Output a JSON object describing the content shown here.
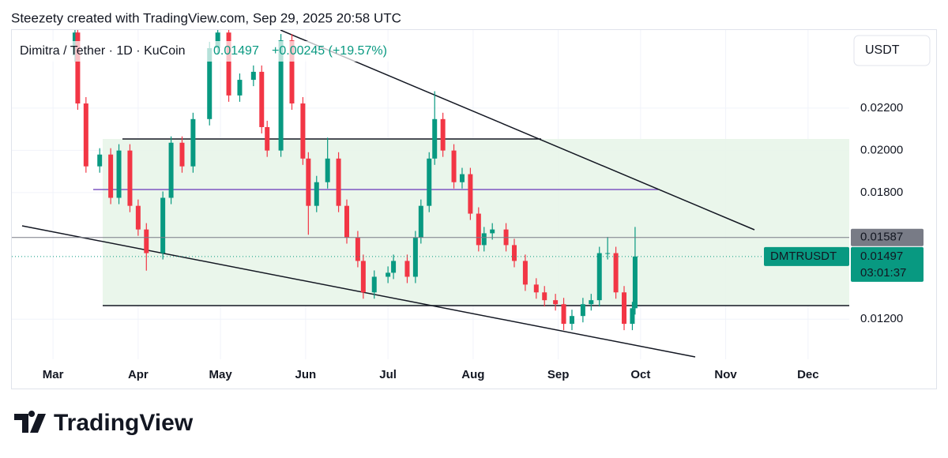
{
  "chart_data": {
    "type": "candlestick",
    "credit": "Steezety created with TradingView.com, Sep 29, 2025 20:58 UTC",
    "title": "Dimitra / Tether · 1D · KuCoin",
    "change": "+0.00245 (+19.57%)",
    "currency": "USDT",
    "symbol": "DMTRUSDT",
    "countdown": "03:01:37",
    "branding": "TradingView",
    "up_color": "#089981",
    "down_color": "#f23645",
    "xlim": [
      -15,
      290
    ],
    "xticks": [
      {
        "value": 0,
        "label": "Mar"
      },
      {
        "value": 31,
        "label": "Apr"
      },
      {
        "value": 61,
        "label": "May"
      },
      {
        "value": 92,
        "label": "Jun"
      },
      {
        "value": 122,
        "label": "Jul"
      },
      {
        "value": 153,
        "label": "Aug"
      },
      {
        "value": 184,
        "label": "Sep"
      },
      {
        "value": 214,
        "label": "Oct"
      },
      {
        "value": 245,
        "label": "Nov"
      },
      {
        "value": 275,
        "label": "Dec"
      }
    ],
    "ylim": [
      0.0101,
      0.0257
    ],
    "yticks": [
      {
        "value": 0.012,
        "label": "0.01200"
      },
      {
        "value": 0.018,
        "label": "0.01800"
      },
      {
        "value": 0.02,
        "label": "0.02000"
      },
      {
        "value": 0.022,
        "label": "0.02200"
      }
    ],
    "grid": true,
    "price_lines": [
      {
        "value": 0.01587,
        "label": "0.01587"
      },
      {
        "value": 0.01497,
        "label": "0.01497"
      }
    ],
    "x": [
      8,
      9,
      12,
      17,
      21,
      24,
      28,
      31,
      34,
      40,
      43,
      47,
      51,
      57,
      60,
      64,
      68,
      73,
      76,
      78,
      83,
      87,
      91,
      93,
      96,
      100,
      104,
      107,
      111,
      113,
      117,
      122,
      124,
      129,
      132,
      134,
      137,
      139,
      142,
      146,
      149,
      152,
      155,
      157,
      160,
      165,
      168,
      172,
      176,
      179,
      183,
      186,
      189,
      193,
      196,
      199,
      202,
      205,
      208,
      211,
      212
    ],
    "open": [
      0.0245,
      0.02558,
      0.02222,
      0.01924,
      0.0198,
      0.01775,
      0.01999,
      0.01737,
      0.01625,
      0.01513,
      0.01775,
      0.02036,
      0.01924,
      0.02148,
      0.02484,
      0.02558,
      0.0226,
      0.02334,
      0.02372,
      0.0211,
      0.01999,
      0.02521,
      0.02222,
      0.01961,
      0.01737,
      0.01849,
      0.01961,
      0.01737,
      0.01588,
      0.01476,
      0.01327,
      0.01401,
      0.0142,
      0.01476,
      0.01401,
      0.01588,
      0.01737,
      0.01961,
      0.02148,
      0.01999,
      0.01849,
      0.01887,
      0.017,
      0.01551,
      0.01607,
      0.01625,
      0.01551,
      0.01476,
      0.01364,
      0.01327,
      0.0129,
      0.01271,
      0.01178,
      0.01215,
      0.01271,
      0.0129,
      0.01513,
      0.01513,
      0.01327,
      0.01178,
      0.01252
    ],
    "high": [
      0.02588,
      0.02588,
      0.02252,
      0.0201,
      0.0201,
      0.02029,
      0.02029,
      0.01767,
      0.01655,
      0.01805,
      0.02066,
      0.02066,
      0.02178,
      0.02514,
      0.02588,
      0.02588,
      0.02364,
      0.02402,
      0.02402,
      0.0214,
      0.02551,
      0.02551,
      0.02252,
      0.01991,
      0.01879,
      0.0206,
      0.01991,
      0.01767,
      0.01618,
      0.01506,
      0.01431,
      0.0145,
      0.01506,
      0.01506,
      0.01618,
      0.01767,
      0.01991,
      0.0228,
      0.02178,
      0.02029,
      0.01917,
      0.01917,
      0.0173,
      0.01637,
      0.01655,
      0.01655,
      0.01581,
      0.01506,
      0.01394,
      0.01357,
      0.0132,
      0.01301,
      0.01245,
      0.01301,
      0.0132,
      0.01543,
      0.0159,
      0.01543,
      0.01357,
      0.01282,
      0.01637
    ],
    "low": [
      0.0242,
      0.02192,
      0.01894,
      0.01894,
      0.01745,
      0.01745,
      0.01707,
      0.01595,
      0.0143,
      0.01483,
      0.01745,
      0.01894,
      0.01894,
      0.02118,
      0.02454,
      0.0223,
      0.0223,
      0.02304,
      0.0208,
      0.01969,
      0.01969,
      0.02192,
      0.01931,
      0.016,
      0.01707,
      0.01819,
      0.01707,
      0.01558,
      0.01446,
      0.01297,
      0.01297,
      0.01371,
      0.0139,
      0.01371,
      0.01371,
      0.01558,
      0.01707,
      0.01931,
      0.01969,
      0.01819,
      0.01819,
      0.0167,
      0.01521,
      0.01521,
      0.01577,
      0.01521,
      0.01446,
      0.01334,
      0.01297,
      0.0126,
      0.01241,
      0.01148,
      0.01148,
      0.01185,
      0.01241,
      0.0126,
      0.01483,
      0.01297,
      0.01148,
      0.01148,
      0.01222
    ],
    "close": [
      0.02558,
      0.02222,
      0.01924,
      0.0198,
      0.01775,
      0.01999,
      0.01737,
      0.01625,
      0.01513,
      0.01775,
      0.02036,
      0.01924,
      0.02148,
      0.02484,
      0.02558,
      0.0226,
      0.02334,
      0.02372,
      0.0211,
      0.01999,
      0.02521,
      0.02222,
      0.01961,
      0.01737,
      0.01849,
      0.01961,
      0.01737,
      0.01588,
      0.01476,
      0.01327,
      0.01401,
      0.0142,
      0.01476,
      0.01401,
      0.01588,
      0.01737,
      0.01961,
      0.02148,
      0.01999,
      0.01849,
      0.01887,
      0.017,
      0.01551,
      0.01607,
      0.01625,
      0.01551,
      0.01476,
      0.01364,
      0.01327,
      0.0129,
      0.01271,
      0.01178,
      0.01215,
      0.01271,
      0.0129,
      0.01513,
      0.01513,
      0.01327,
      0.01178,
      0.01252,
      0.01497
    ]
  }
}
